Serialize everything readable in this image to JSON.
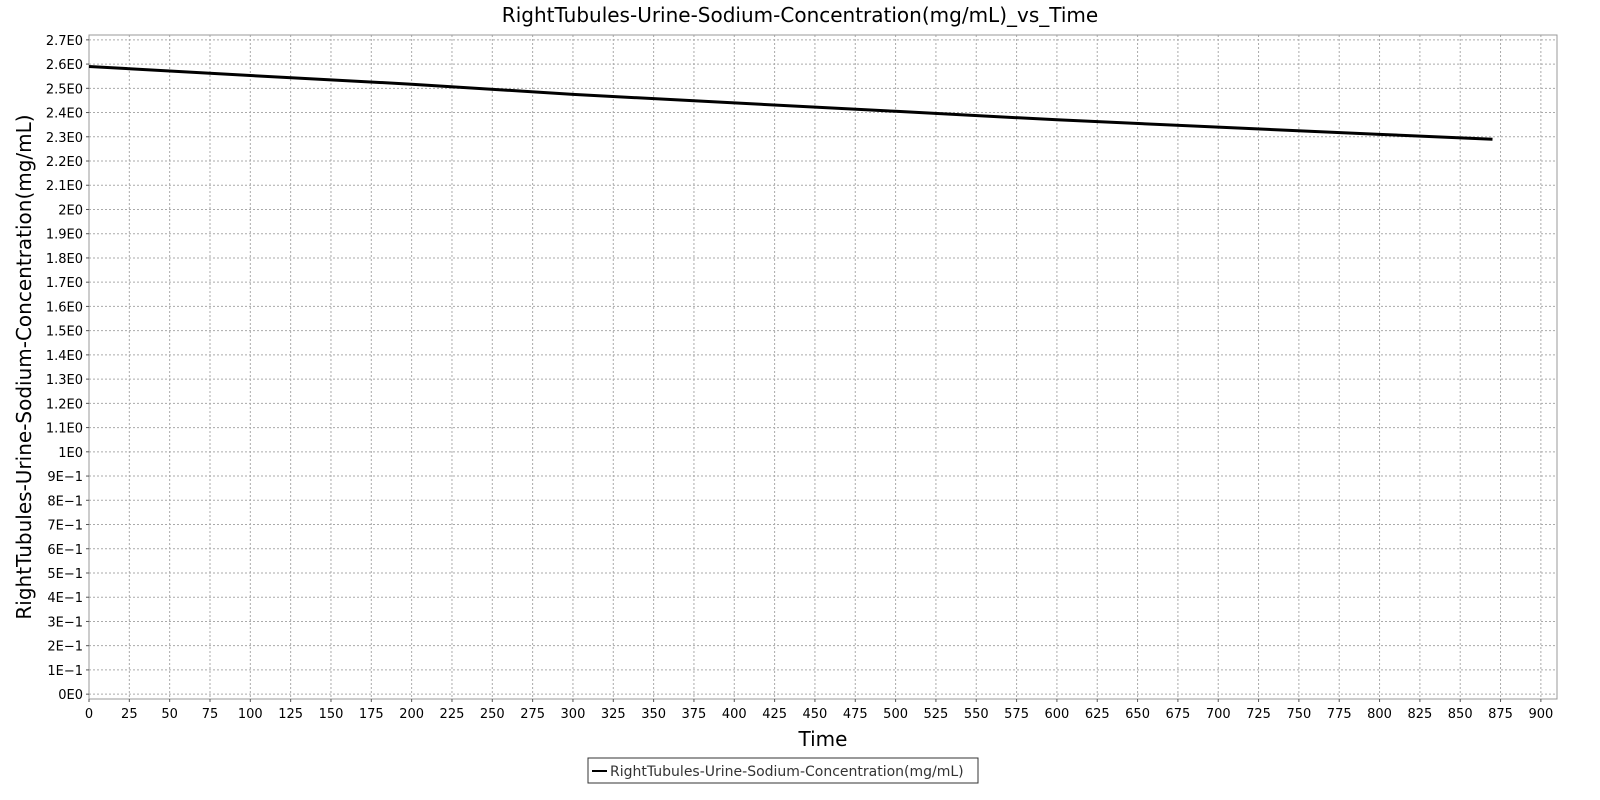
{
  "chart_data": {
    "type": "line",
    "title": "RightTubules-Urine-Sodium-Concentration(mg/mL)_vs_Time",
    "xlabel": "Time",
    "ylabel": "RightTubules-Urine-Sodium-Concentration(mg/mL)",
    "xlim": [
      0,
      910
    ],
    "ylim": [
      -0.02,
      2.72
    ],
    "x_ticks": [
      0,
      25,
      50,
      75,
      100,
      125,
      150,
      175,
      200,
      225,
      250,
      275,
      300,
      325,
      350,
      375,
      400,
      425,
      450,
      475,
      500,
      525,
      550,
      575,
      600,
      625,
      650,
      675,
      700,
      725,
      750,
      775,
      800,
      825,
      850,
      875,
      900
    ],
    "x_tick_labels": [
      "0",
      "25",
      "50",
      "75",
      "100",
      "125",
      "150",
      "175",
      "200",
      "225",
      "250",
      "275",
      "300",
      "325",
      "350",
      "375",
      "400",
      "425",
      "450",
      "475",
      "500",
      "525",
      "550",
      "575",
      "600",
      "625",
      "650",
      "675",
      "700",
      "725",
      "750",
      "775",
      "800",
      "825",
      "850",
      "875",
      "900"
    ],
    "y_ticks": [
      0,
      0.1,
      0.2,
      0.3,
      0.4,
      0.5,
      0.6,
      0.7,
      0.8,
      0.9,
      1.0,
      1.1,
      1.2,
      1.3,
      1.4,
      1.5,
      1.6,
      1.7,
      1.8,
      1.9,
      2.0,
      2.1,
      2.2,
      2.3,
      2.4,
      2.5,
      2.6,
      2.7
    ],
    "y_tick_labels": [
      "0E0",
      "1E−1",
      "2E−1",
      "3E−1",
      "4E−1",
      "5E−1",
      "6E−1",
      "7E−1",
      "8E−1",
      "9E−1",
      "1E0",
      "1.1E0",
      "1.2E0",
      "1.3E0",
      "1.4E0",
      "1.5E0",
      "1.6E0",
      "1.7E0",
      "1.8E0",
      "1.9E0",
      "2E0",
      "2.1E0",
      "2.2E0",
      "2.3E0",
      "2.4E0",
      "2.5E0",
      "2.6E0",
      "2.7E0"
    ],
    "grid": true,
    "legend_position": "bottom-center",
    "series": [
      {
        "name": "RightTubules-Urine-Sodium-Concentration(mg/mL)",
        "color": "#000000",
        "x": [
          0,
          100,
          200,
          300,
          400,
          500,
          600,
          700,
          800,
          870
        ],
        "y": [
          2.59,
          2.553,
          2.517,
          2.475,
          2.44,
          2.405,
          2.37,
          2.34,
          2.31,
          2.29
        ]
      }
    ]
  }
}
